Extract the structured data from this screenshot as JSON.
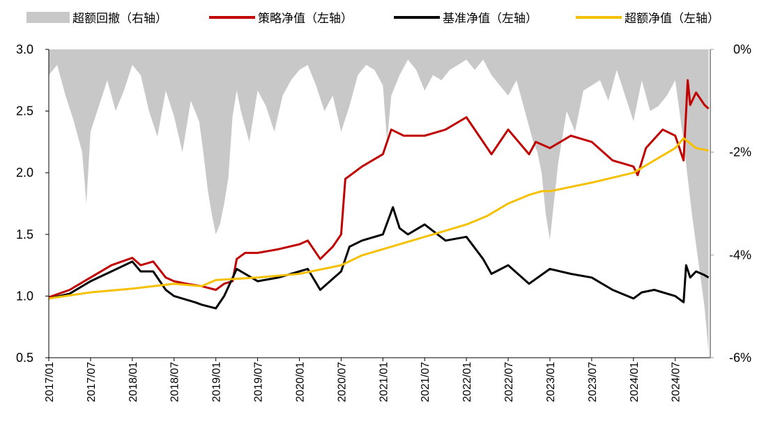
{
  "chart_data": {
    "type": "line",
    "legend": [
      {
        "label": "超额回撤（右轴）",
        "kind": "area",
        "color": "#c8c8c8"
      },
      {
        "label": "策略净值（左轴）",
        "kind": "line",
        "color": "#c00000"
      },
      {
        "label": "基准净值（左轴）",
        "kind": "line",
        "color": "#000000"
      },
      {
        "label": "超额净值（左轴）",
        "kind": "line",
        "color": "#f5c000"
      }
    ],
    "x_ticks": [
      "2017/01",
      "2017/07",
      "2018/01",
      "2018/07",
      "2019/01",
      "2019/07",
      "2020/01",
      "2020/07",
      "2021/01",
      "2021/07",
      "2022/01",
      "2022/07",
      "2023/01",
      "2023/07",
      "2024/01",
      "2024/07"
    ],
    "y_left": {
      "ticks": [
        "0.5",
        "1.0",
        "1.5",
        "2.0",
        "2.5",
        "3.0"
      ],
      "lim": [
        0.5,
        3.0
      ]
    },
    "y_right": {
      "ticks": [
        "0%",
        "-2%",
        "-4%",
        "-6%"
      ],
      "lim": [
        -0.06,
        0
      ]
    },
    "series": [
      {
        "name": "策略净值（左轴）",
        "color": "#c00000",
        "axis": "left",
        "x": [
          2017.0,
          2017.25,
          2017.5,
          2017.75,
          2018.0,
          2018.1,
          2018.25,
          2018.4,
          2018.5,
          2018.65,
          2018.83,
          2019.0,
          2019.1,
          2019.2,
          2019.25,
          2019.35,
          2019.5,
          2019.75,
          2020.0,
          2020.1,
          2020.25,
          2020.4,
          2020.5,
          2020.55,
          2020.75,
          2021.0,
          2021.1,
          2021.25,
          2021.5,
          2021.75,
          2022.0,
          2022.2,
          2022.3,
          2022.5,
          2022.75,
          2022.83,
          2023.0,
          2023.25,
          2023.5,
          2023.75,
          2024.0,
          2024.05,
          2024.15,
          2024.35,
          2024.5,
          2024.6,
          2024.65,
          2024.68,
          2024.75,
          2024.85,
          2024.9
        ],
        "y": [
          0.99,
          1.05,
          1.15,
          1.25,
          1.31,
          1.25,
          1.28,
          1.15,
          1.12,
          1.1,
          1.08,
          1.05,
          1.1,
          1.12,
          1.3,
          1.35,
          1.35,
          1.38,
          1.42,
          1.45,
          1.3,
          1.4,
          1.5,
          1.95,
          2.05,
          2.15,
          2.35,
          2.3,
          2.3,
          2.35,
          2.45,
          2.25,
          2.15,
          2.35,
          2.15,
          2.25,
          2.2,
          2.3,
          2.25,
          2.1,
          2.05,
          1.98,
          2.2,
          2.35,
          2.3,
          2.1,
          2.75,
          2.55,
          2.65,
          2.55,
          2.52
        ]
      },
      {
        "name": "基准净值（左轴）",
        "color": "#000000",
        "axis": "left",
        "x": [
          2017.0,
          2017.25,
          2017.5,
          2017.75,
          2018.0,
          2018.1,
          2018.25,
          2018.4,
          2018.5,
          2018.75,
          2018.83,
          2019.0,
          2019.1,
          2019.25,
          2019.5,
          2019.75,
          2020.0,
          2020.1,
          2020.25,
          2020.5,
          2020.6,
          2020.75,
          2021.0,
          2021.12,
          2021.2,
          2021.3,
          2021.5,
          2021.75,
          2022.0,
          2022.2,
          2022.3,
          2022.5,
          2022.75,
          2023.0,
          2023.25,
          2023.5,
          2023.75,
          2024.0,
          2024.1,
          2024.25,
          2024.5,
          2024.6,
          2024.63,
          2024.68,
          2024.75,
          2024.85,
          2024.9
        ],
        "y": [
          0.98,
          1.02,
          1.12,
          1.2,
          1.28,
          1.2,
          1.2,
          1.05,
          1.0,
          0.95,
          0.93,
          0.9,
          1.0,
          1.22,
          1.12,
          1.15,
          1.2,
          1.22,
          1.05,
          1.2,
          1.4,
          1.45,
          1.5,
          1.72,
          1.55,
          1.5,
          1.58,
          1.45,
          1.48,
          1.3,
          1.18,
          1.25,
          1.1,
          1.22,
          1.18,
          1.15,
          1.05,
          0.98,
          1.03,
          1.05,
          1.0,
          0.95,
          1.25,
          1.15,
          1.2,
          1.17,
          1.15
        ]
      },
      {
        "name": "超额净值（左轴）",
        "color": "#f5c000",
        "axis": "left",
        "x": [
          2017.0,
          2017.5,
          2018.0,
          2018.5,
          2018.83,
          2019.0,
          2019.25,
          2019.5,
          2020.0,
          2020.5,
          2020.75,
          2021.0,
          2021.5,
          2022.0,
          2022.25,
          2022.5,
          2022.75,
          2022.9,
          2023.0,
          2023.5,
          2024.0,
          2024.25,
          2024.5,
          2024.6,
          2024.75,
          2024.9
        ],
        "y": [
          0.98,
          1.03,
          1.06,
          1.1,
          1.08,
          1.13,
          1.14,
          1.15,
          1.18,
          1.25,
          1.33,
          1.38,
          1.48,
          1.58,
          1.65,
          1.75,
          1.82,
          1.85,
          1.85,
          1.92,
          2.0,
          2.1,
          2.2,
          2.28,
          2.2,
          2.18
        ]
      },
      {
        "name": "超额回撤（右轴）",
        "color": "#c8c8c8",
        "axis": "right",
        "kind": "area",
        "x": [
          2017.0,
          2017.1,
          2017.2,
          2017.3,
          2017.4,
          2017.45,
          2017.5,
          2017.6,
          2017.7,
          2017.8,
          2017.9,
          2018.0,
          2018.1,
          2018.2,
          2018.3,
          2018.4,
          2018.5,
          2018.6,
          2018.7,
          2018.8,
          2018.85,
          2018.9,
          2018.95,
          2019.0,
          2019.05,
          2019.1,
          2019.15,
          2019.2,
          2019.25,
          2019.3,
          2019.4,
          2019.5,
          2019.6,
          2019.7,
          2019.8,
          2019.9,
          2020.0,
          2020.1,
          2020.2,
          2020.3,
          2020.4,
          2020.5,
          2020.6,
          2020.7,
          2020.8,
          2020.9,
          2021.0,
          2021.05,
          2021.1,
          2021.2,
          2021.3,
          2021.4,
          2021.5,
          2021.6,
          2021.7,
          2021.8,
          2021.9,
          2022.0,
          2022.1,
          2022.2,
          2022.3,
          2022.4,
          2022.5,
          2022.6,
          2022.7,
          2022.8,
          2022.85,
          2022.9,
          2022.95,
          2023.0,
          2023.1,
          2023.2,
          2023.3,
          2023.4,
          2023.5,
          2023.6,
          2023.7,
          2023.8,
          2023.9,
          2024.0,
          2024.1,
          2024.2,
          2024.3,
          2024.4,
          2024.5,
          2024.55,
          2024.6,
          2024.65,
          2024.7,
          2024.75,
          2024.8,
          2024.85,
          2024.9
        ],
        "y": [
          -0.005,
          -0.003,
          -0.009,
          -0.014,
          -0.02,
          -0.03,
          -0.016,
          -0.011,
          -0.006,
          -0.012,
          -0.008,
          -0.003,
          -0.005,
          -0.012,
          -0.017,
          -0.008,
          -0.013,
          -0.02,
          -0.01,
          -0.014,
          -0.02,
          -0.027,
          -0.032,
          -0.036,
          -0.034,
          -0.03,
          -0.025,
          -0.013,
          -0.008,
          -0.012,
          -0.018,
          -0.008,
          -0.011,
          -0.016,
          -0.009,
          -0.006,
          -0.004,
          -0.003,
          -0.007,
          -0.012,
          -0.009,
          -0.016,
          -0.011,
          -0.005,
          -0.003,
          -0.004,
          -0.007,
          -0.018,
          -0.009,
          -0.005,
          -0.002,
          -0.004,
          -0.008,
          -0.005,
          -0.006,
          -0.004,
          -0.003,
          -0.002,
          -0.004,
          -0.002,
          -0.005,
          -0.007,
          -0.009,
          -0.006,
          -0.012,
          -0.018,
          -0.02,
          -0.024,
          -0.032,
          -0.037,
          -0.022,
          -0.012,
          -0.016,
          -0.008,
          -0.007,
          -0.006,
          -0.01,
          -0.004,
          -0.009,
          -0.014,
          -0.006,
          -0.012,
          -0.011,
          -0.009,
          -0.006,
          -0.012,
          -0.018,
          -0.025,
          -0.032,
          -0.038,
          -0.044,
          -0.05,
          -0.059
        ]
      }
    ]
  }
}
